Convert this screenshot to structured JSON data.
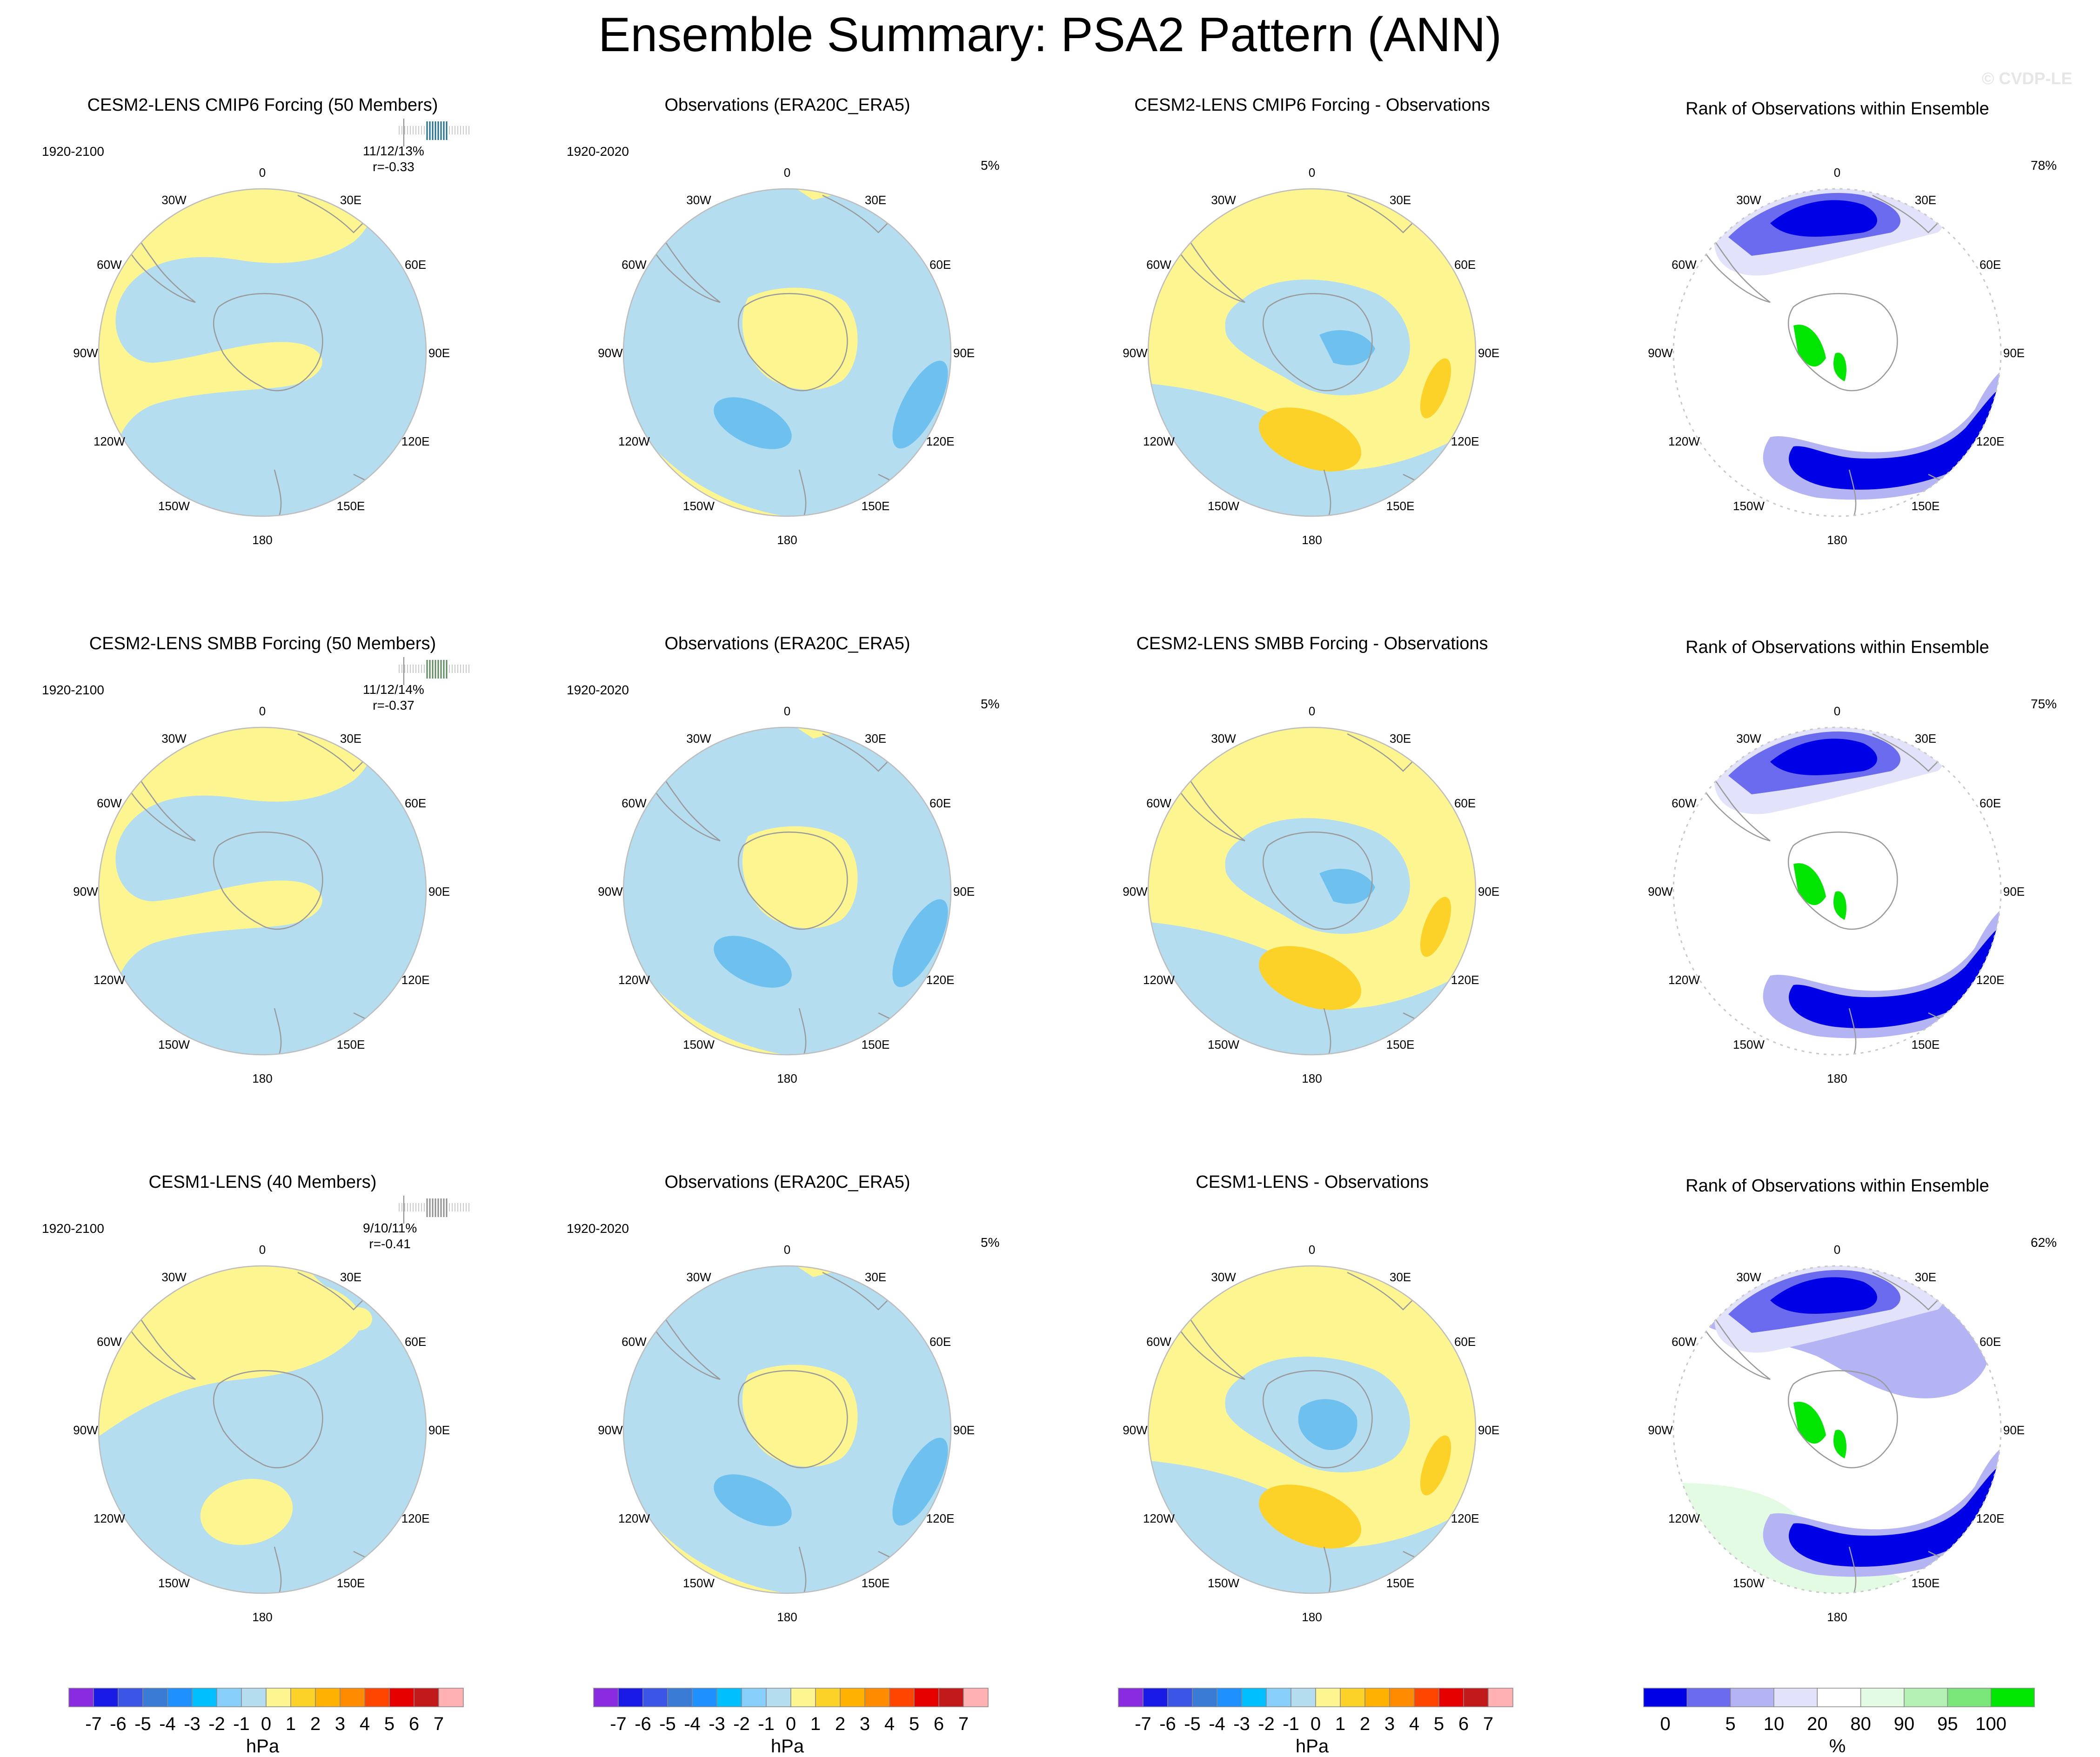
{
  "header": {
    "title": "Ensemble Summary: PSA2 Pattern (ANN)",
    "watermark": "© CVDP-LE"
  },
  "colors": {
    "pos1": "#fdf590",
    "neg1": "#b4ddf0",
    "pos2": "#fdd228",
    "neg2": "#6ec0ee",
    "rank_dark_blue": "#0000e6",
    "rank_mid_blue": "#6b6bf0",
    "rank_light_blue": "#b4b4f5",
    "rank_pale_blue": "#e2e2fb",
    "rank_pale_green": "#e3fbe3",
    "rank_green": "#00e600",
    "coast": "#9a9a9a"
  },
  "map": {
    "lon_labels": [
      "0",
      "30E",
      "60E",
      "90E",
      "120E",
      "150E",
      "180",
      "150W",
      "120W",
      "90W",
      "60W",
      "30W"
    ]
  },
  "rows": [
    {
      "model": {
        "title": "CESM2-LENS CMIP6 Forcing (50 Members)",
        "title_color": "#1f6e8c",
        "rug_color": "#1f6e8c",
        "period": "1920-2100",
        "stats_line1": "11/12/13%",
        "stats_line2": "r=-0.33"
      },
      "obs": {
        "title": "Observations (ERA20C_ERA5)",
        "period": "1920-2020",
        "pct": "5%"
      },
      "diff": {
        "title": "CESM2-LENS CMIP6 Forcing - Observations"
      },
      "rank": {
        "title": "Rank of Observations within Ensemble",
        "pct": "78%"
      }
    },
    {
      "model": {
        "title": "CESM2-LENS SMBB Forcing (50 Members)",
        "title_color": "#5c8a5c",
        "rug_color": "#5c8a5c",
        "period": "1920-2100",
        "stats_line1": "11/12/14%",
        "stats_line2": "r=-0.37"
      },
      "obs": {
        "title": "Observations (ERA20C_ERA5)",
        "period": "1920-2020",
        "pct": "5%"
      },
      "diff": {
        "title": "CESM2-LENS SMBB Forcing - Observations"
      },
      "rank": {
        "title": "Rank of Observations within Ensemble",
        "pct": "75%"
      }
    },
    {
      "model": {
        "title": "CESM1-LENS (40 Members)",
        "title_color": "#8f8f8f",
        "rug_color": "#8f8f8f",
        "period": "1920-2100",
        "stats_line1": "9/10/11%",
        "stats_line2": "r=-0.41"
      },
      "obs": {
        "title": "Observations (ERA20C_ERA5)",
        "period": "1920-2020",
        "pct": "5%"
      },
      "diff": {
        "title": "CESM1-LENS - Observations"
      },
      "rank": {
        "title": "Rank of Observations within Ensemble",
        "pct": "62%"
      }
    }
  ],
  "legends": {
    "pressure": {
      "unit": "hPa",
      "labels": [
        "-7",
        "-6",
        "-5",
        "-4",
        "-3",
        "-2",
        "-1",
        "0",
        "1",
        "2",
        "3",
        "4",
        "5",
        "6",
        "7"
      ],
      "colors": [
        "#8a2be2",
        "#1a1ae6",
        "#3b55e6",
        "#3a7bd5",
        "#1e90ff",
        "#00bfff",
        "#87cefa",
        "#b4ddf0",
        "#fdf590",
        "#fdd228",
        "#ffb000",
        "#ff8c00",
        "#ff4500",
        "#e60000",
        "#c21a1a",
        "#ffb0b0"
      ]
    },
    "rank": {
      "unit": "%",
      "labels": [
        "0",
        "5",
        "10",
        "20",
        "80",
        "90",
        "95",
        "100"
      ],
      "colors": [
        "#0000e6",
        "#6b6bf0",
        "#b4b4f5",
        "#e2e2fb",
        "#ffffff",
        "#e3fbe3",
        "#b4f0b4",
        "#7ae67a",
        "#00e600"
      ]
    }
  }
}
